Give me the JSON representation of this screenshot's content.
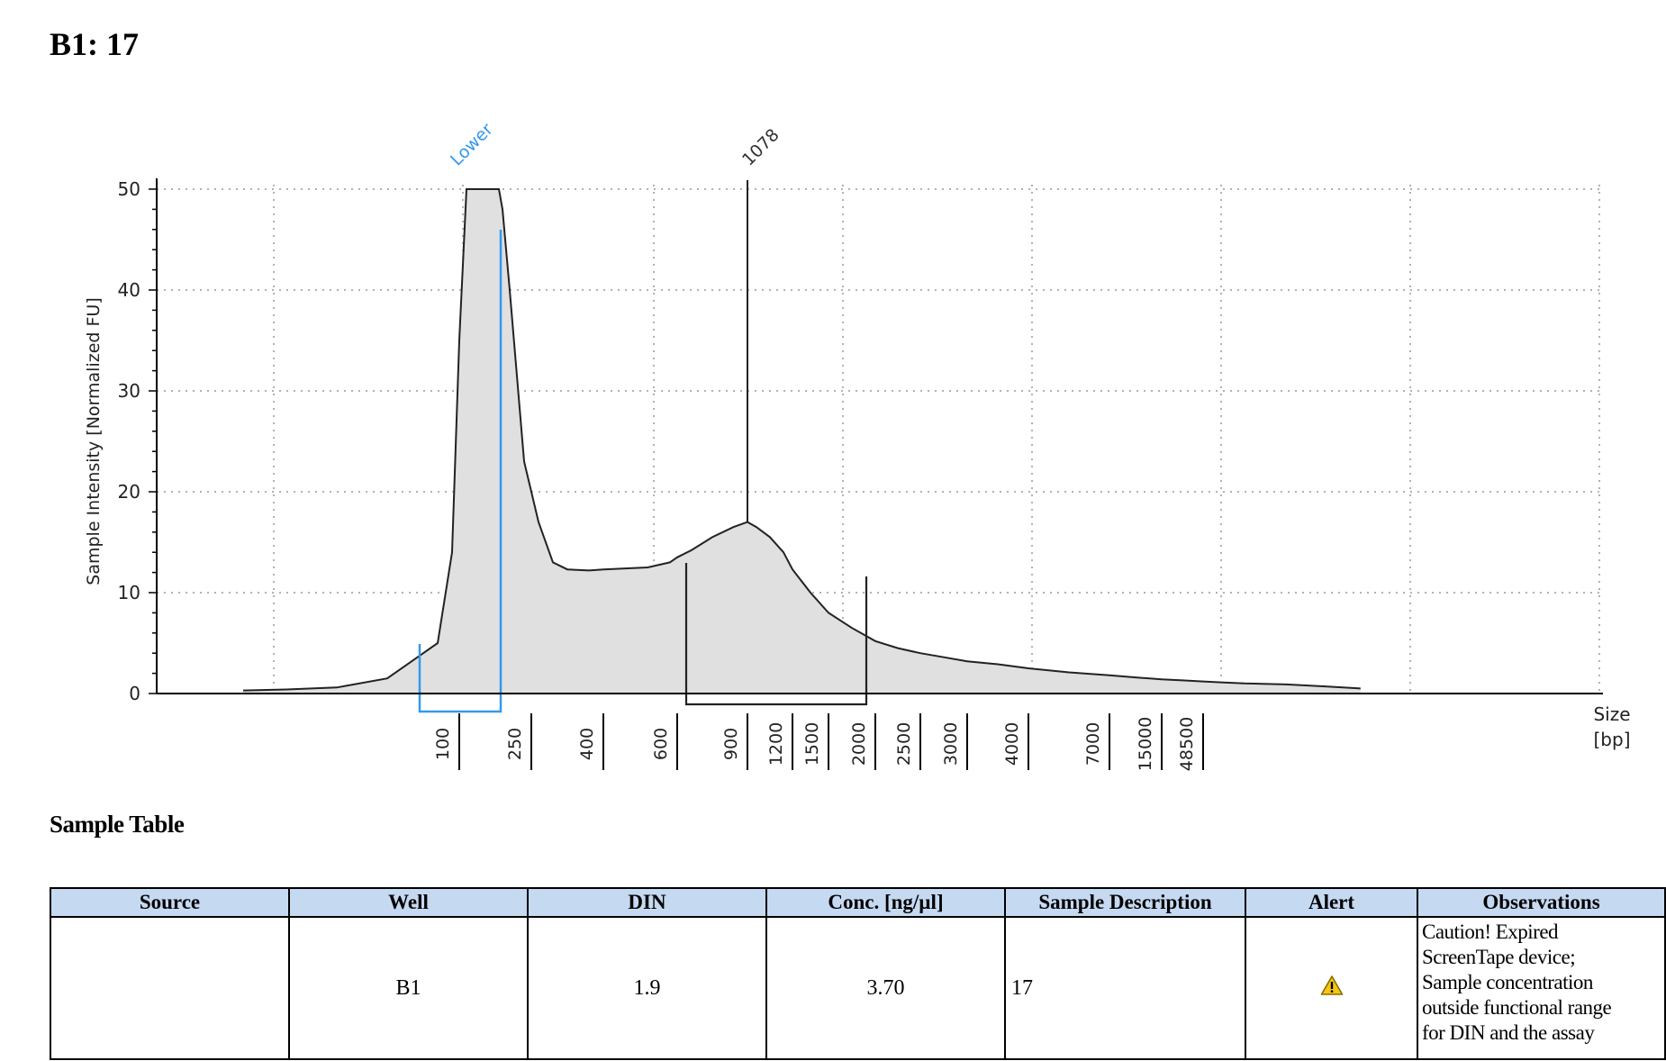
{
  "header": {
    "title": "B1: 17"
  },
  "colors": {
    "fill": "#e0e0e0",
    "line": "#222222",
    "lower_marker": "#3399ee",
    "header_bg": "#c5d9f1",
    "alert_icon": "#f5c518"
  },
  "chart_data": {
    "type": "area",
    "title": "",
    "ylabel": "Sample Intensity [Normalized FU]",
    "xlabel": "Size\n[bp]",
    "xlabel_lines": [
      "Size",
      "[bp]"
    ],
    "ylim": [
      0,
      50
    ],
    "yticks": [
      0,
      10,
      20,
      30,
      40,
      50
    ],
    "grid": true,
    "x_scale": "categorical-ladder",
    "x_ticks": [
      "100",
      "250",
      "400",
      "600",
      "900",
      "1200",
      "1500",
      "2000",
      "2500",
      "3000",
      "4000",
      "7000",
      "15000",
      "48500"
    ],
    "peak_labels": [
      {
        "label": "Lower",
        "color": "#3399ee"
      },
      {
        "label": "1078",
        "color": "#333333"
      }
    ],
    "peak_size_bp": 1078,
    "peak_intensity": 17,
    "series": [
      {
        "x": [
          -3.0,
          -2.4,
          -1.7,
          -1.0,
          -0.6,
          -0.3,
          -0.1,
          0.0,
          0.1,
          0.2,
          0.5,
          0.55,
          0.6,
          0.7,
          0.9,
          1.1,
          1.3,
          1.5,
          1.8,
          2.0,
          2.3,
          2.6,
          2.9,
          3.0,
          3.2,
          3.5,
          3.8,
          4.0,
          4.2,
          4.5,
          4.8,
          5.0,
          5.5,
          6.0,
          6.5,
          7.0,
          7.5,
          8.0,
          8.5,
          9.0,
          9.5,
          10.0,
          10.5,
          11.0,
          11.5,
          12.0,
          12.5,
          13.0,
          13.5,
          14.0,
          15.0,
          16.0,
          16.8
        ],
        "values": [
          0.3,
          0.4,
          0.6,
          1.5,
          3.5,
          5.0,
          14,
          35,
          50,
          50,
          50,
          50,
          48,
          40,
          23,
          17,
          13,
          12.3,
          12.2,
          12.3,
          12.4,
          12.5,
          13,
          13.5,
          14.2,
          15.5,
          16.5,
          17,
          16.5,
          15.5,
          14,
          12.3,
          10,
          8,
          6.5,
          5.2,
          4.5,
          4.0,
          3.6,
          3.2,
          2.9,
          2.5,
          2.1,
          1.8,
          1.6,
          1.4,
          1.3,
          1.2,
          1.1,
          1.0,
          0.9,
          0.7,
          0.5
        ]
      }
    ]
  },
  "sample_table": {
    "heading": "Sample Table",
    "columns": [
      "Source",
      "Well",
      "DIN",
      "Conc. [ng/µl]",
      "Sample Description",
      "Alert",
      "Observations"
    ],
    "rows": [
      {
        "source": "",
        "well": "B1",
        "din": "1.9",
        "conc": "3.70",
        "description": "17",
        "alert_icon": "warning-icon",
        "observations": [
          "Caution! Expired",
          "ScreenTape device;",
          "Sample concentration",
          "outside functional range",
          "for DIN and the assay"
        ]
      }
    ]
  }
}
